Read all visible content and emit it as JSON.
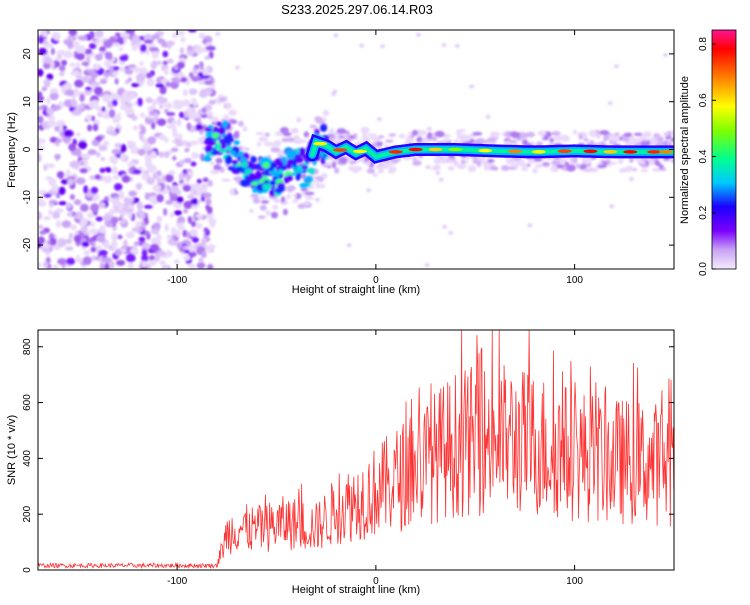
{
  "title": "S233.2025.297.06.14.R03",
  "chart_data": [
    {
      "type": "heatmap",
      "title": "S233.2025.297.06.14.R03",
      "xlabel": "Height of straight line (km)",
      "ylabel": "Frequency (Hz)",
      "xlim": [
        -170,
        150
      ],
      "ylim": [
        -25,
        25
      ],
      "xticks": [
        -100,
        0,
        100
      ],
      "yticks": [
        -20,
        -10,
        0,
        10,
        20
      ],
      "xtick_labels": [
        "-100",
        "0",
        "100"
      ],
      "ytick_labels": [
        "-20",
        "-10",
        "0",
        "10",
        "20"
      ],
      "colorbar": {
        "label": "Normalized spectral amplitude",
        "range": [
          0,
          0.85
        ],
        "ticks": [
          0.0,
          0.2,
          0.4,
          0.6,
          0.8
        ],
        "tick_labels": [
          "0.0",
          "0.2",
          "0.4",
          "0.6",
          "0.8"
        ],
        "colors": [
          "#e8d8f8",
          "#7b00ff",
          "#1a00ff",
          "#00c8ff",
          "#00ff80",
          "#80ff00",
          "#ffff00",
          "#ff8000",
          "#ff0000",
          "#ff1493"
        ]
      },
      "noise_region_end_km": -85,
      "ridge": [
        [
          -85,
          1
        ],
        [
          -80,
          3
        ],
        [
          -75,
          2
        ],
        [
          -72,
          -1
        ],
        [
          -68,
          -3
        ],
        [
          -62,
          -5
        ],
        [
          -56,
          -5.5
        ],
        [
          -50,
          -6
        ],
        [
          -45,
          -4
        ],
        [
          -40,
          -2
        ],
        [
          -35,
          -5
        ],
        [
          -30,
          1.5
        ],
        [
          -25,
          0.8
        ],
        [
          -20,
          -0.5
        ],
        [
          -15,
          0.5
        ],
        [
          -10,
          -0.8
        ],
        [
          -5,
          0.2
        ],
        [
          0,
          -1.5
        ],
        [
          10,
          -0.5
        ],
        [
          20,
          0
        ],
        [
          40,
          0
        ],
        [
          60,
          -0.3
        ],
        [
          80,
          -0.5
        ],
        [
          100,
          -0.3
        ],
        [
          120,
          -0.5
        ],
        [
          150,
          -0.5
        ]
      ]
    },
    {
      "type": "line",
      "xlabel": "Height of straight line (km)",
      "ylabel": "SNR (10 * v/v)",
      "xlim": [
        -170,
        150
      ],
      "ylim": [
        0,
        860
      ],
      "xticks": [
        -100,
        0,
        100
      ],
      "yticks": [
        0,
        200,
        400,
        600,
        800
      ],
      "xtick_labels": [
        "-100",
        "0",
        "100"
      ],
      "ytick_labels": [
        "0",
        "200",
        "400",
        "600",
        "800"
      ],
      "color": "#ff3333",
      "envelope": [
        [
          -170,
          20
        ],
        [
          -80,
          20
        ],
        [
          -75,
          150
        ],
        [
          -70,
          180
        ],
        [
          -60,
          170
        ],
        [
          -45,
          200
        ],
        [
          -30,
          180
        ],
        [
          -20,
          250
        ],
        [
          0,
          330
        ],
        [
          20,
          430
        ],
        [
          40,
          530
        ],
        [
          60,
          560
        ],
        [
          80,
          530
        ],
        [
          100,
          490
        ],
        [
          120,
          460
        ],
        [
          140,
          450
        ],
        [
          150,
          440
        ]
      ]
    }
  ]
}
